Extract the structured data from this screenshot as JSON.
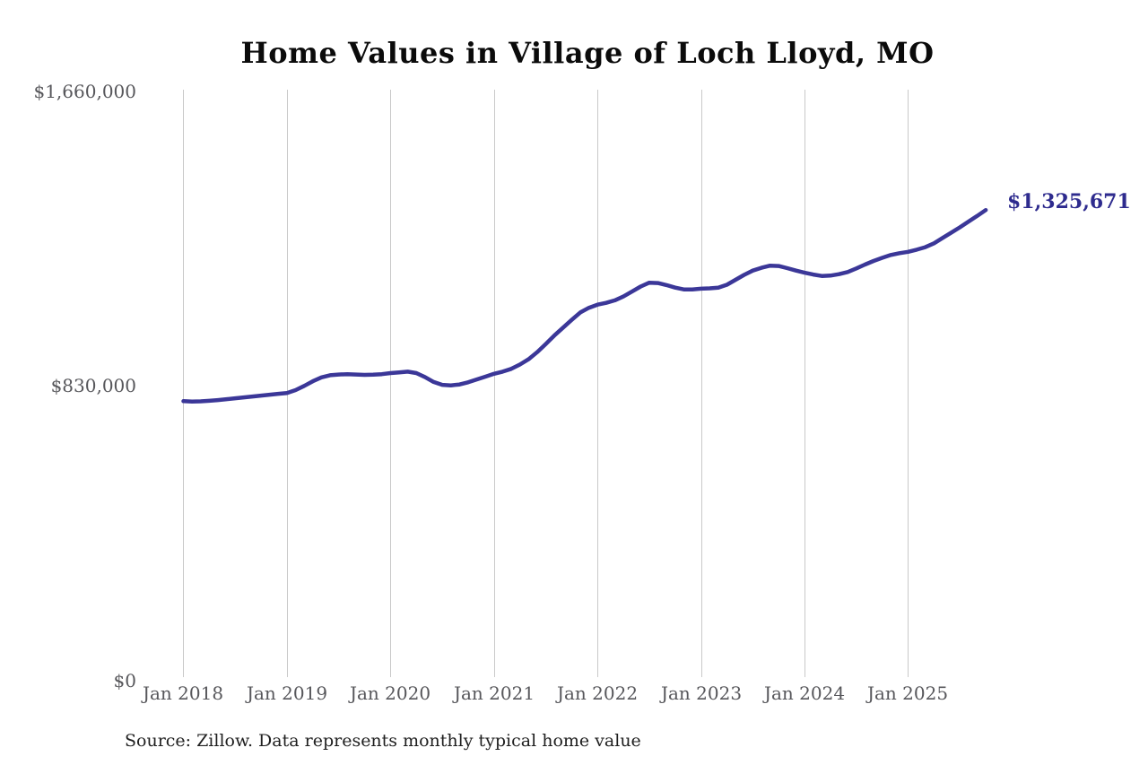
{
  "page": {
    "background_color": "#ffffff"
  },
  "chart_data": {
    "type": "line",
    "title": "Home Values in Village of Loch Lloyd, MO",
    "source_note": "Source: Zillow. Data represents monthly typical home value",
    "series_name": "Monthly typical home value",
    "end_label": "$1,325,671",
    "latest_value": 1325671,
    "x_unit": "month",
    "x_start": "2018-01",
    "x_end": "2025-10",
    "x_tick_labels": [
      "Jan 2018",
      "Jan 2019",
      "Jan 2020",
      "Jan 2021",
      "Jan 2022",
      "Jan 2023",
      "Jan 2024",
      "Jan 2025"
    ],
    "y_tick_labels": [
      "$1,660,000",
      "$830,000",
      "$0"
    ],
    "y_tick_values": [
      1660000,
      830000,
      0
    ],
    "ylim": [
      0,
      1660000
    ],
    "grid": "vertical-only",
    "legend": "none",
    "line_color": "#3b3798",
    "value_label_color": "#2e2b8e",
    "grid_color": "#c9c9c9",
    "tick_color": "#57575b",
    "title_color": "#0b0b0b",
    "values": [
      787000,
      786000,
      786500,
      788000,
      790000,
      792500,
      795000,
      797500,
      800000,
      802500,
      805000,
      807500,
      810000,
      818000,
      830000,
      843000,
      854000,
      860000,
      862000,
      863000,
      862000,
      861000,
      861500,
      863000,
      866000,
      868000,
      870000,
      866000,
      855000,
      841000,
      833000,
      831500,
      834000,
      840000,
      848000,
      856000,
      864000,
      870000,
      878000,
      890000,
      905000,
      925000,
      948000,
      972000,
      994000,
      1016000,
      1037000,
      1050000,
      1059000,
      1064000,
      1071000,
      1082000,
      1096000,
      1110000,
      1121000,
      1120000,
      1114000,
      1107000,
      1102000,
      1102000,
      1104000,
      1105000,
      1107000,
      1115000,
      1129000,
      1143000,
      1155000,
      1163000,
      1169000,
      1168000,
      1162000,
      1155000,
      1149000,
      1144000,
      1140000,
      1141000,
      1145000,
      1151000,
      1161000,
      1172000,
      1182000,
      1191000,
      1199000,
      1204000,
      1208000,
      1214000,
      1221000,
      1232000,
      1247000,
      1262000,
      1277000,
      1293000,
      1309000,
      1325671
    ]
  }
}
